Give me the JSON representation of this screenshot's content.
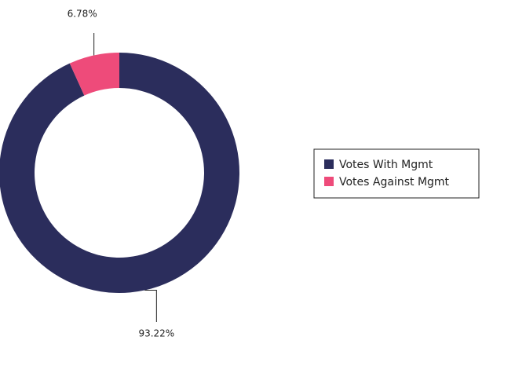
{
  "chart_data": {
    "type": "donut",
    "series": [
      {
        "name": "Votes With Mgmt",
        "color": "#2b2d5c",
        "values": [
          93.22
        ],
        "value_labels": [
          "93.22%"
        ]
      },
      {
        "name": "Votes Against Mgmt",
        "color": "#ee4b7a",
        "values": [
          6.78
        ],
        "value_labels": [
          "6.78%"
        ]
      }
    ]
  }
}
